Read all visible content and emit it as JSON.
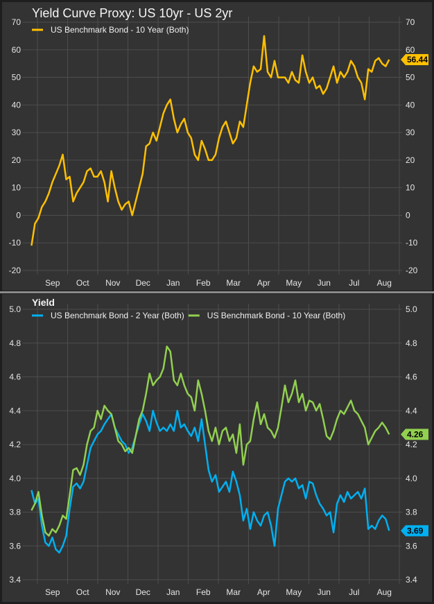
{
  "chart_data": [
    {
      "type": "line",
      "title": "Yield Curve Proxy: US 10yr - US 2yr",
      "xlabel": "",
      "ylabel": "",
      "ylim": [
        -20,
        70
      ],
      "yticks": [
        -20,
        -10,
        0,
        10,
        20,
        30,
        40,
        50,
        60,
        70
      ],
      "xtick_labels": [
        "Sep",
        "Oct",
        "Nov",
        "Dec",
        "Jan",
        "Feb",
        "Mar",
        "Apr",
        "May",
        "Jun",
        "Jul",
        "Aug"
      ],
      "grid": true,
      "legend_position": "top-left",
      "x_start_day_from_sep1": -6,
      "x_step_days": 3.5,
      "series": [
        {
          "name": "US Benchmark Bond - 10 Year (Both)",
          "color": "#ffc000",
          "last_value_label": "56.44",
          "values": [
            -11,
            -3,
            -1,
            3,
            5,
            8,
            12,
            15,
            18,
            22,
            13,
            14,
            5,
            8,
            10,
            12,
            16,
            17,
            14,
            14,
            16,
            12,
            5,
            16,
            10,
            5,
            2,
            4,
            5,
            0,
            5,
            10,
            15,
            25,
            26,
            30,
            27,
            32,
            37,
            40,
            42,
            35,
            30,
            33,
            35,
            30,
            28,
            22,
            20,
            27,
            24,
            20,
            20,
            22,
            28,
            32,
            34,
            30,
            26,
            28,
            34,
            32,
            40,
            48,
            54,
            52,
            53,
            65,
            52,
            50,
            56,
            50,
            50,
            50,
            48,
            52,
            49,
            48,
            58,
            52,
            48,
            50,
            46,
            47,
            44,
            46,
            50,
            54,
            48,
            52,
            50,
            52,
            56,
            54,
            50,
            48,
            42,
            53,
            52,
            56,
            57,
            55,
            54,
            56.44
          ]
        }
      ]
    },
    {
      "type": "line",
      "title": "Yield",
      "xlabel": "",
      "ylabel": "",
      "ylim": [
        3.4,
        5.0
      ],
      "yticks": [
        "3.4",
        "3.6",
        "3.8",
        "4.0",
        "4.2",
        "4.4",
        "4.6",
        "4.8",
        "5.0"
      ],
      "xtick_labels": [
        "Sep",
        "Oct",
        "Nov",
        "Dec",
        "Jan",
        "Feb",
        "Mar",
        "Apr",
        "May",
        "Jun",
        "Jul",
        "Aug"
      ],
      "grid": true,
      "legend_position": "top-left",
      "x_start_day_from_sep1": -6,
      "x_step_days": 3.5,
      "series": [
        {
          "name": "US Benchmark Bond - 2 Year (Both)",
          "color": "#00b0f0",
          "last_value_label": "3.69",
          "values": [
            3.93,
            3.85,
            3.88,
            3.72,
            3.62,
            3.6,
            3.65,
            3.58,
            3.56,
            3.6,
            3.66,
            3.82,
            3.95,
            3.97,
            3.94,
            3.98,
            4.08,
            4.18,
            4.22,
            4.26,
            4.28,
            4.32,
            4.35,
            4.38,
            4.3,
            4.26,
            4.22,
            4.2,
            4.15,
            4.18,
            4.25,
            4.32,
            4.38,
            4.34,
            4.28,
            4.4,
            4.33,
            4.28,
            4.3,
            4.28,
            4.32,
            4.28,
            4.4,
            4.3,
            4.32,
            4.28,
            4.25,
            4.3,
            4.22,
            4.35,
            4.2,
            4.05,
            3.98,
            4.02,
            3.92,
            3.95,
            3.98,
            3.92,
            4.04,
            3.98,
            3.9,
            3.75,
            3.82,
            3.7,
            3.8,
            3.75,
            3.72,
            3.78,
            3.8,
            3.72,
            3.6,
            3.82,
            3.9,
            3.98,
            4.0,
            3.98,
            4.0,
            3.94,
            3.96,
            3.88,
            3.98,
            3.97,
            3.9,
            3.85,
            3.82,
            3.78,
            3.8,
            3.68,
            3.85,
            3.9,
            3.86,
            3.92,
            3.88,
            3.9,
            3.92,
            3.88,
            3.94,
            3.7,
            3.72,
            3.7,
            3.75,
            3.78,
            3.76,
            3.69
          ]
        },
        {
          "name": "US Benchmark Bond - 10 Year (Both)",
          "color": "#92d050",
          "last_value_label": "4.26",
          "values": [
            3.81,
            3.85,
            3.92,
            3.78,
            3.68,
            3.66,
            3.7,
            3.68,
            3.72,
            3.78,
            3.76,
            3.9,
            4.05,
            4.06,
            4.02,
            4.08,
            4.2,
            4.28,
            4.3,
            4.4,
            4.35,
            4.43,
            4.4,
            4.38,
            4.3,
            4.22,
            4.2,
            4.16,
            4.18,
            4.15,
            4.25,
            4.35,
            4.4,
            4.5,
            4.62,
            4.55,
            4.58,
            4.6,
            4.65,
            4.78,
            4.75,
            4.58,
            4.55,
            4.62,
            4.55,
            4.5,
            4.48,
            4.4,
            4.58,
            4.5,
            4.4,
            4.28,
            4.22,
            4.3,
            4.2,
            4.28,
            4.3,
            4.22,
            4.26,
            4.15,
            4.32,
            4.08,
            4.2,
            4.22,
            4.35,
            4.45,
            4.32,
            4.38,
            4.3,
            4.28,
            4.24,
            4.3,
            4.42,
            4.55,
            4.45,
            4.5,
            4.58,
            4.45,
            4.5,
            4.4,
            4.46,
            4.45,
            4.4,
            4.44,
            4.35,
            4.25,
            4.23,
            4.28,
            4.35,
            4.4,
            4.38,
            4.42,
            4.46,
            4.4,
            4.38,
            4.34,
            4.3,
            4.2,
            4.24,
            4.28,
            4.3,
            4.33,
            4.3,
            4.26
          ]
        }
      ]
    }
  ]
}
